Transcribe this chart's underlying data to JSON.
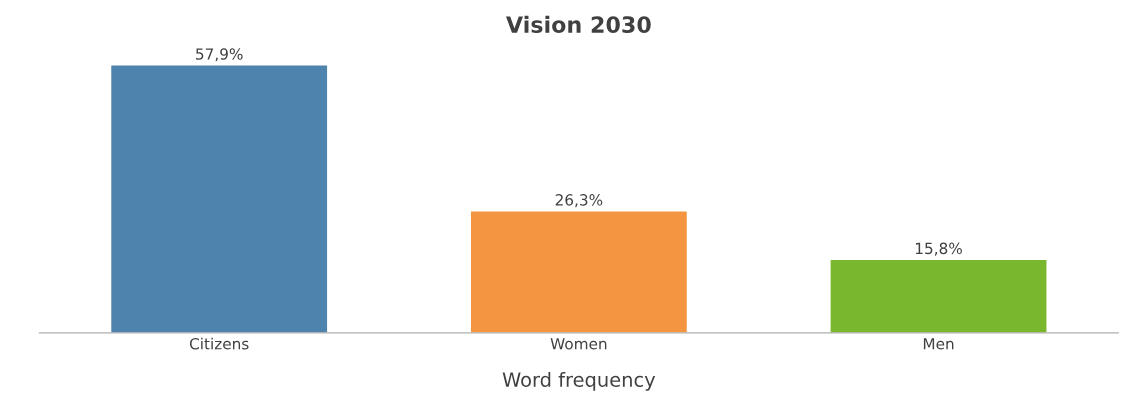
{
  "chart_data": {
    "type": "bar",
    "title": "Vision 2030",
    "xlabel": "Word frequency",
    "categories": [
      "Citizens",
      "Women",
      "Men"
    ],
    "values": [
      57.9,
      26.3,
      15.8
    ],
    "value_labels": [
      "57,9%",
      "26,3%",
      "15,8%"
    ],
    "colors": [
      "#4e83ad",
      "#f39541",
      "#78b72e"
    ],
    "tick_labels": "x",
    "grid": false,
    "legend": false
  }
}
